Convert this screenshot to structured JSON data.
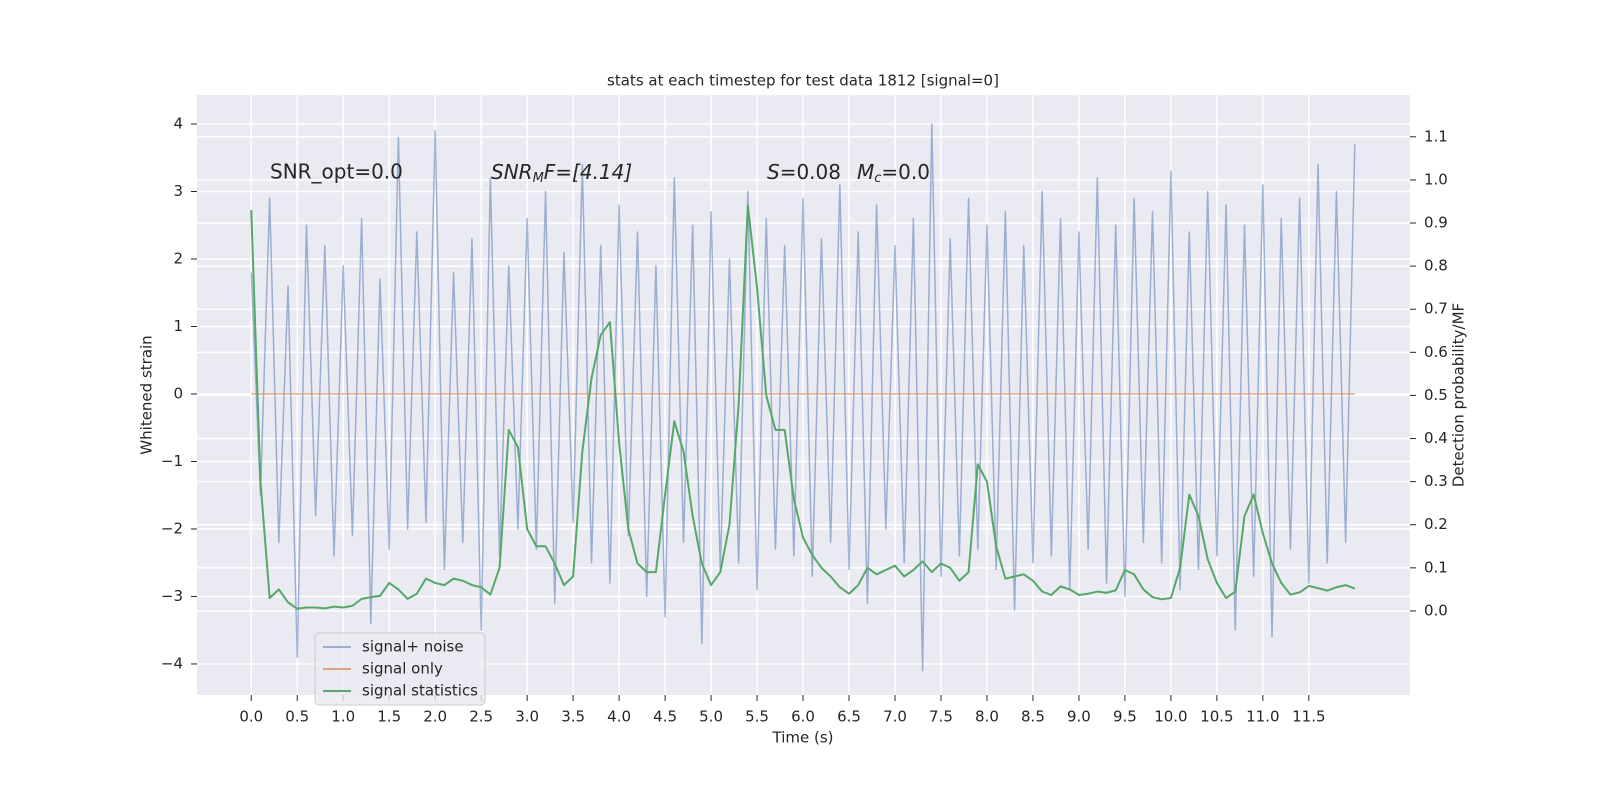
{
  "chart_data": {
    "type": "line",
    "title": "stats at each timestep for test data 1812 [signal=0]",
    "xlabel": "Time (s)",
    "ylabel": "Whitened strain",
    "y2label": "Detection probability/MF",
    "annotations": [
      [
        "SNR_opt=0.0"
      ],
      [
        "SNR",
        "M",
        "F=[4.14]"
      ],
      [
        "S",
        "=0.08",
        "M",
        "c",
        "=0.0"
      ]
    ],
    "x": [
      0,
      0.1,
      0.2,
      0.3,
      0.4,
      0.5,
      0.6,
      0.7,
      0.8,
      0.9,
      1,
      1.1,
      1.2,
      1.3,
      1.4,
      1.5,
      1.6,
      1.7,
      1.8,
      1.9,
      2,
      2.1,
      2.2,
      2.3,
      2.4,
      2.5,
      2.6,
      2.7,
      2.8,
      2.9,
      3,
      3.1,
      3.2,
      3.3,
      3.4,
      3.5,
      3.6,
      3.7,
      3.8,
      3.9,
      4,
      4.1,
      4.2,
      4.3,
      4.4,
      4.5,
      4.6,
      4.7,
      4.8,
      4.9,
      5,
      5.1,
      5.2,
      5.3,
      5.4,
      5.5,
      5.6,
      5.7,
      5.8,
      5.9,
      6,
      6.1,
      6.2,
      6.3,
      6.4,
      6.5,
      6.6,
      6.7,
      6.8,
      6.9,
      7,
      7.1,
      7.2,
      7.3,
      7.4,
      7.5,
      7.6,
      7.7,
      7.8,
      7.9,
      8,
      8.1,
      8.2,
      8.3,
      8.4,
      8.5,
      8.6,
      8.7,
      8.8,
      8.9,
      9,
      9.1,
      9.2,
      9.3,
      9.4,
      9.5,
      9.6,
      9.7,
      9.8,
      9.9,
      10,
      10.1,
      10.2,
      10.3,
      10.4,
      10.5,
      10.6,
      10.7,
      10.8,
      10.9,
      11,
      11.1,
      11.2,
      11.3,
      11.4,
      11.5,
      11.6,
      11.7,
      11.8,
      11.9,
      12
    ],
    "series": [
      {
        "name": "signal+ noise",
        "color": "#4c72b0",
        "alpha": 0.5,
        "axis": "y",
        "values": [
          1.8,
          -1.5,
          2.9,
          -2.2,
          1.6,
          -3.9,
          2.5,
          -1.8,
          2.2,
          -2.4,
          1.9,
          -2.1,
          2.6,
          -3.4,
          1.7,
          -2.3,
          3.8,
          -2.0,
          2.4,
          -1.9,
          3.9,
          -2.6,
          1.8,
          -2.2,
          2.3,
          -3.5,
          3.2,
          -2.4,
          1.9,
          -2.0,
          2.6,
          -2.3,
          3.0,
          -3.1,
          2.1,
          -1.9,
          3.4,
          -2.5,
          2.2,
          -2.8,
          2.8,
          -2.1,
          2.4,
          -3.0,
          1.9,
          -3.3,
          3.2,
          -2.2,
          2.5,
          -3.7,
          2.7,
          -2.6,
          2.0,
          -2.5,
          3.0,
          -2.9,
          2.6,
          -2.3,
          2.2,
          -2.4,
          2.9,
          -2.7,
          2.3,
          -2.2,
          3.1,
          -2.6,
          2.4,
          -3.1,
          2.8,
          -2.0,
          2.2,
          -2.5,
          2.6,
          -4.1,
          4.0,
          -2.7,
          2.3,
          -2.4,
          2.9,
          -2.3,
          2.5,
          -2.6,
          2.7,
          -3.2,
          2.2,
          -2.5,
          3.0,
          -2.4,
          2.6,
          -2.9,
          2.4,
          -2.3,
          3.2,
          -2.8,
          2.5,
          -3.0,
          2.9,
          -2.2,
          2.7,
          -2.5,
          3.3,
          -2.9,
          2.4,
          -2.6,
          3.0,
          -2.4,
          2.8,
          -3.5,
          2.5,
          -2.7,
          3.1,
          -3.6,
          2.6,
          -2.3,
          2.9,
          -2.8,
          3.4,
          -2.5,
          3.0,
          -2.2,
          3.7
        ]
      },
      {
        "name": "signal only",
        "color": "#dd8452",
        "alpha": 0.7,
        "axis": "y",
        "values": [
          0,
          0,
          0,
          0,
          0,
          0,
          0,
          0,
          0,
          0,
          0,
          0,
          0,
          0,
          0,
          0,
          0,
          0,
          0,
          0,
          0,
          0,
          0,
          0,
          0,
          0,
          0,
          0,
          0,
          0,
          0,
          0,
          0,
          0,
          0,
          0,
          0,
          0,
          0,
          0,
          0,
          0,
          0,
          0,
          0,
          0,
          0,
          0,
          0,
          0,
          0,
          0,
          0,
          0,
          0,
          0,
          0,
          0,
          0,
          0,
          0,
          0,
          0,
          0,
          0,
          0,
          0,
          0,
          0,
          0,
          0,
          0,
          0,
          0,
          0,
          0,
          0,
          0,
          0,
          0,
          0,
          0,
          0,
          0,
          0,
          0,
          0,
          0,
          0,
          0,
          0,
          0,
          0,
          0,
          0,
          0,
          0,
          0,
          0,
          0,
          0,
          0,
          0,
          0,
          0,
          0,
          0,
          0,
          0,
          0,
          0,
          0,
          0,
          0,
          0,
          0,
          0,
          0,
          0,
          0,
          0
        ]
      },
      {
        "name": "signal statistics",
        "color": "#55a868",
        "alpha": 1,
        "axis": "y2",
        "values": [
          0.93,
          0.3,
          0.03,
          0.05,
          0.02,
          0.005,
          0.008,
          0.008,
          0.006,
          0.01,
          0.008,
          0.012,
          0.028,
          0.032,
          0.035,
          0.065,
          0.05,
          0.028,
          0.04,
          0.075,
          0.065,
          0.06,
          0.075,
          0.07,
          0.06,
          0.055,
          0.038,
          0.1,
          0.42,
          0.38,
          0.19,
          0.15,
          0.15,
          0.11,
          0.06,
          0.08,
          0.37,
          0.54,
          0.64,
          0.67,
          0.39,
          0.19,
          0.11,
          0.09,
          0.09,
          0.27,
          0.44,
          0.37,
          0.22,
          0.11,
          0.06,
          0.09,
          0.2,
          0.48,
          0.94,
          0.75,
          0.5,
          0.42,
          0.42,
          0.26,
          0.17,
          0.13,
          0.1,
          0.08,
          0.055,
          0.04,
          0.06,
          0.1,
          0.085,
          0.095,
          0.105,
          0.08,
          0.095,
          0.115,
          0.09,
          0.11,
          0.1,
          0.07,
          0.09,
          0.34,
          0.3,
          0.15,
          0.075,
          0.08,
          0.085,
          0.07,
          0.045,
          0.037,
          0.057,
          0.05,
          0.037,
          0.04,
          0.045,
          0.042,
          0.048,
          0.095,
          0.085,
          0.05,
          0.032,
          0.027,
          0.03,
          0.1,
          0.27,
          0.22,
          0.12,
          0.065,
          0.03,
          0.045,
          0.22,
          0.27,
          0.18,
          0.11,
          0.065,
          0.038,
          0.043,
          0.058,
          0.053,
          0.047,
          0.055,
          0.06,
          0.052
        ]
      }
    ],
    "xlim": [
      -0.59,
      12.6
    ],
    "xticks": [
      {
        "value": 0,
        "label": "0.0"
      },
      0.5,
      {
        "value": 1,
        "label": "1.0"
      },
      1.5,
      {
        "value": 2,
        "label": "2.0"
      },
      2.5,
      {
        "value": 3,
        "label": "3.0"
      },
      3.5,
      {
        "value": 4,
        "label": "4.0"
      },
      4.5,
      {
        "value": 5,
        "label": "5.0"
      },
      5.5,
      {
        "value": 6,
        "label": "6.0"
      },
      6.5,
      {
        "value": 7,
        "label": "7.0"
      },
      7.5,
      {
        "value": 8,
        "label": "8.0"
      },
      8.5,
      {
        "value": 9,
        "label": "9.0"
      },
      9.5,
      {
        "value": 10,
        "label": "10.0"
      },
      10.5,
      {
        "value": 11,
        "label": "11.0"
      },
      11.5
    ],
    "ylim": [
      -4.46,
      4.43
    ],
    "yticks": [
      {
        "value": -4,
        "label": "−4"
      },
      {
        "value": -3,
        "label": "−3"
      },
      {
        "value": -2,
        "label": "−2"
      },
      {
        "value": -1,
        "label": "−1"
      },
      0,
      1,
      2,
      3,
      4
    ],
    "y2lim": [
      -0.195,
      1.197
    ],
    "y2ticks": [
      {
        "value": 0,
        "label": "0.0"
      },
      0.1,
      0.2,
      0.3,
      0.4,
      0.5,
      0.6,
      0.7,
      0.8,
      0.9,
      {
        "value": 1,
        "label": "1.0"
      },
      1.1
    ],
    "grid": true,
    "legend": "lower left",
    "background": "#eaeaf2"
  }
}
